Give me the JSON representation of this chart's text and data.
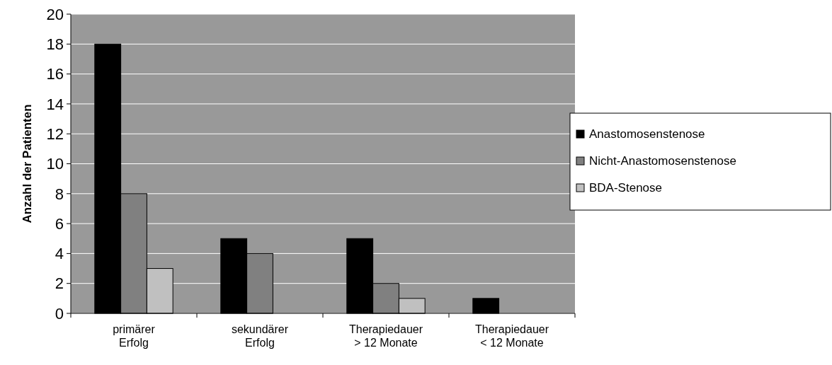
{
  "chart_data": {
    "type": "bar",
    "ylabel": "Anzahl der Patienten",
    "categories": [
      "primärer Erfolg",
      "sekundärer Erfolg",
      "Therapiedauer > 12 Monate",
      "Therapiedauer < 12 Monate"
    ],
    "series": [
      {
        "name": "Anastomosenstenose",
        "color": "#000000",
        "values": [
          18,
          5,
          5,
          1
        ]
      },
      {
        "name": "Nicht-Anastomosenstenose",
        "color": "#808080",
        "values": [
          8,
          4,
          2,
          0
        ]
      },
      {
        "name": "BDA-Stenose",
        "color": "#c0c0c0",
        "values": [
          3,
          0,
          1,
          0
        ]
      }
    ],
    "ylim": [
      0,
      20
    ],
    "yticks": [
      0,
      2,
      4,
      6,
      8,
      10,
      12,
      14,
      16,
      18,
      20
    ],
    "grid": "y",
    "legend": "right"
  }
}
